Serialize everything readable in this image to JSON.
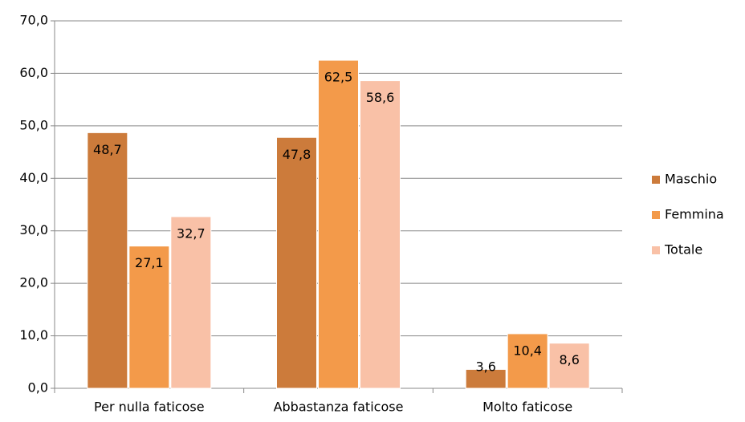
{
  "chart_data": {
    "type": "bar",
    "categories": [
      "Per nulla faticose",
      "Abbastanza faticose",
      "Molto faticose"
    ],
    "series": [
      {
        "name": "Maschio",
        "color": "#cc7b3b",
        "values": [
          48.7,
          47.8,
          3.6
        ],
        "value_labels": [
          "48,7",
          "47,8",
          "3,6"
        ]
      },
      {
        "name": "Femmina",
        "color": "#f39a4a",
        "values": [
          27.1,
          62.5,
          10.4
        ],
        "value_labels": [
          "27,1",
          "62,5",
          "10,4"
        ]
      },
      {
        "name": "Totale",
        "color": "#f9c1a7",
        "values": [
          32.7,
          58.6,
          8.6
        ],
        "value_labels": [
          "32,7",
          "58,6",
          "8,6"
        ]
      }
    ],
    "ylim": [
      0,
      70
    ],
    "yticks": [
      {
        "value": 0,
        "label": "0,0"
      },
      {
        "value": 10,
        "label": "10,0"
      },
      {
        "value": 20,
        "label": "20,0"
      },
      {
        "value": 30,
        "label": "30,0"
      },
      {
        "value": 40,
        "label": "40,0"
      },
      {
        "value": 50,
        "label": "50,0"
      },
      {
        "value": 60,
        "label": "60,0"
      },
      {
        "value": 70,
        "label": "70,0"
      }
    ],
    "grid": true,
    "legend": "right"
  }
}
